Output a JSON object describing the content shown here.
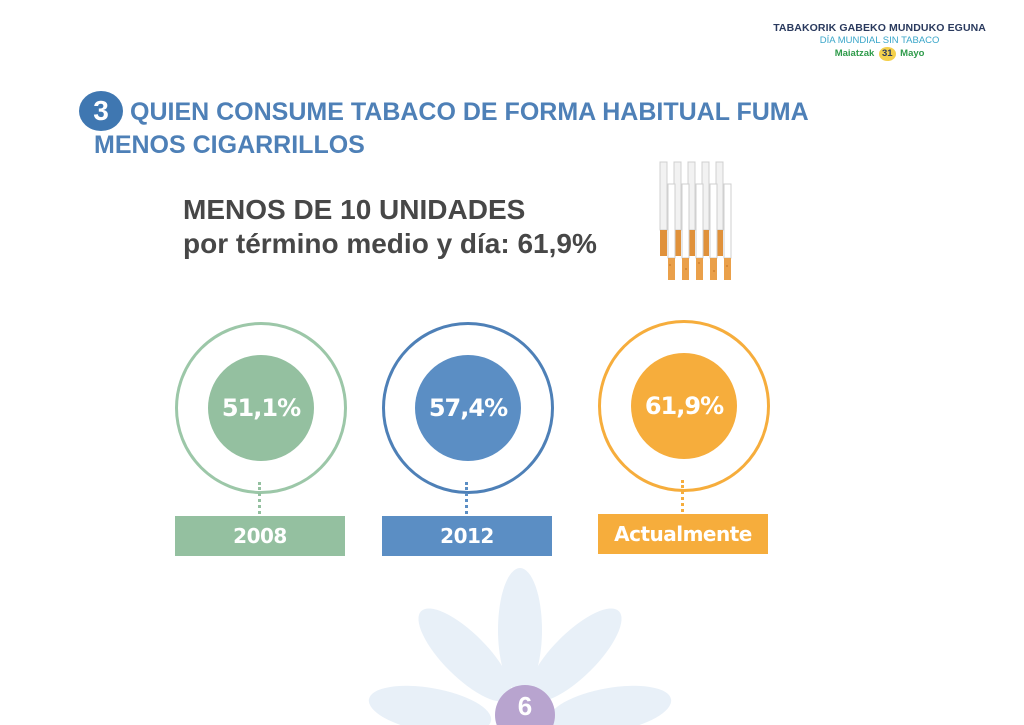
{
  "header": {
    "line1": "TABAKORIK GABEKO MUNDUKO EGUNA",
    "line2": "DÍA MUNDIAL SIN TABACO",
    "line3_left": "Maiatzak",
    "line3_num": "31",
    "line3_right": "Mayo"
  },
  "section": {
    "number": "3",
    "title_line1": "QUIEN CONSUME TABACO DE FORMA HABITUAL FUMA",
    "title_line2": "MENOS CIGARRILLOS"
  },
  "subtitle": {
    "line1": "MENOS DE 10 UNIDADES",
    "line2": "por término medio y día: 61,9%"
  },
  "stats": [
    {
      "value": "51,1%",
      "label": "2008",
      "color": "#94c0a0",
      "ring": "#9cc7a8"
    },
    {
      "value": "57,4%",
      "label": "2012",
      "color": "#5b8ec4",
      "ring": "#4e80b7"
    },
    {
      "value": "61,9%",
      "label": "Actualmente",
      "color": "#f6ad3c",
      "ring": "#f6ad3c"
    }
  ],
  "page": {
    "number": "6"
  }
}
